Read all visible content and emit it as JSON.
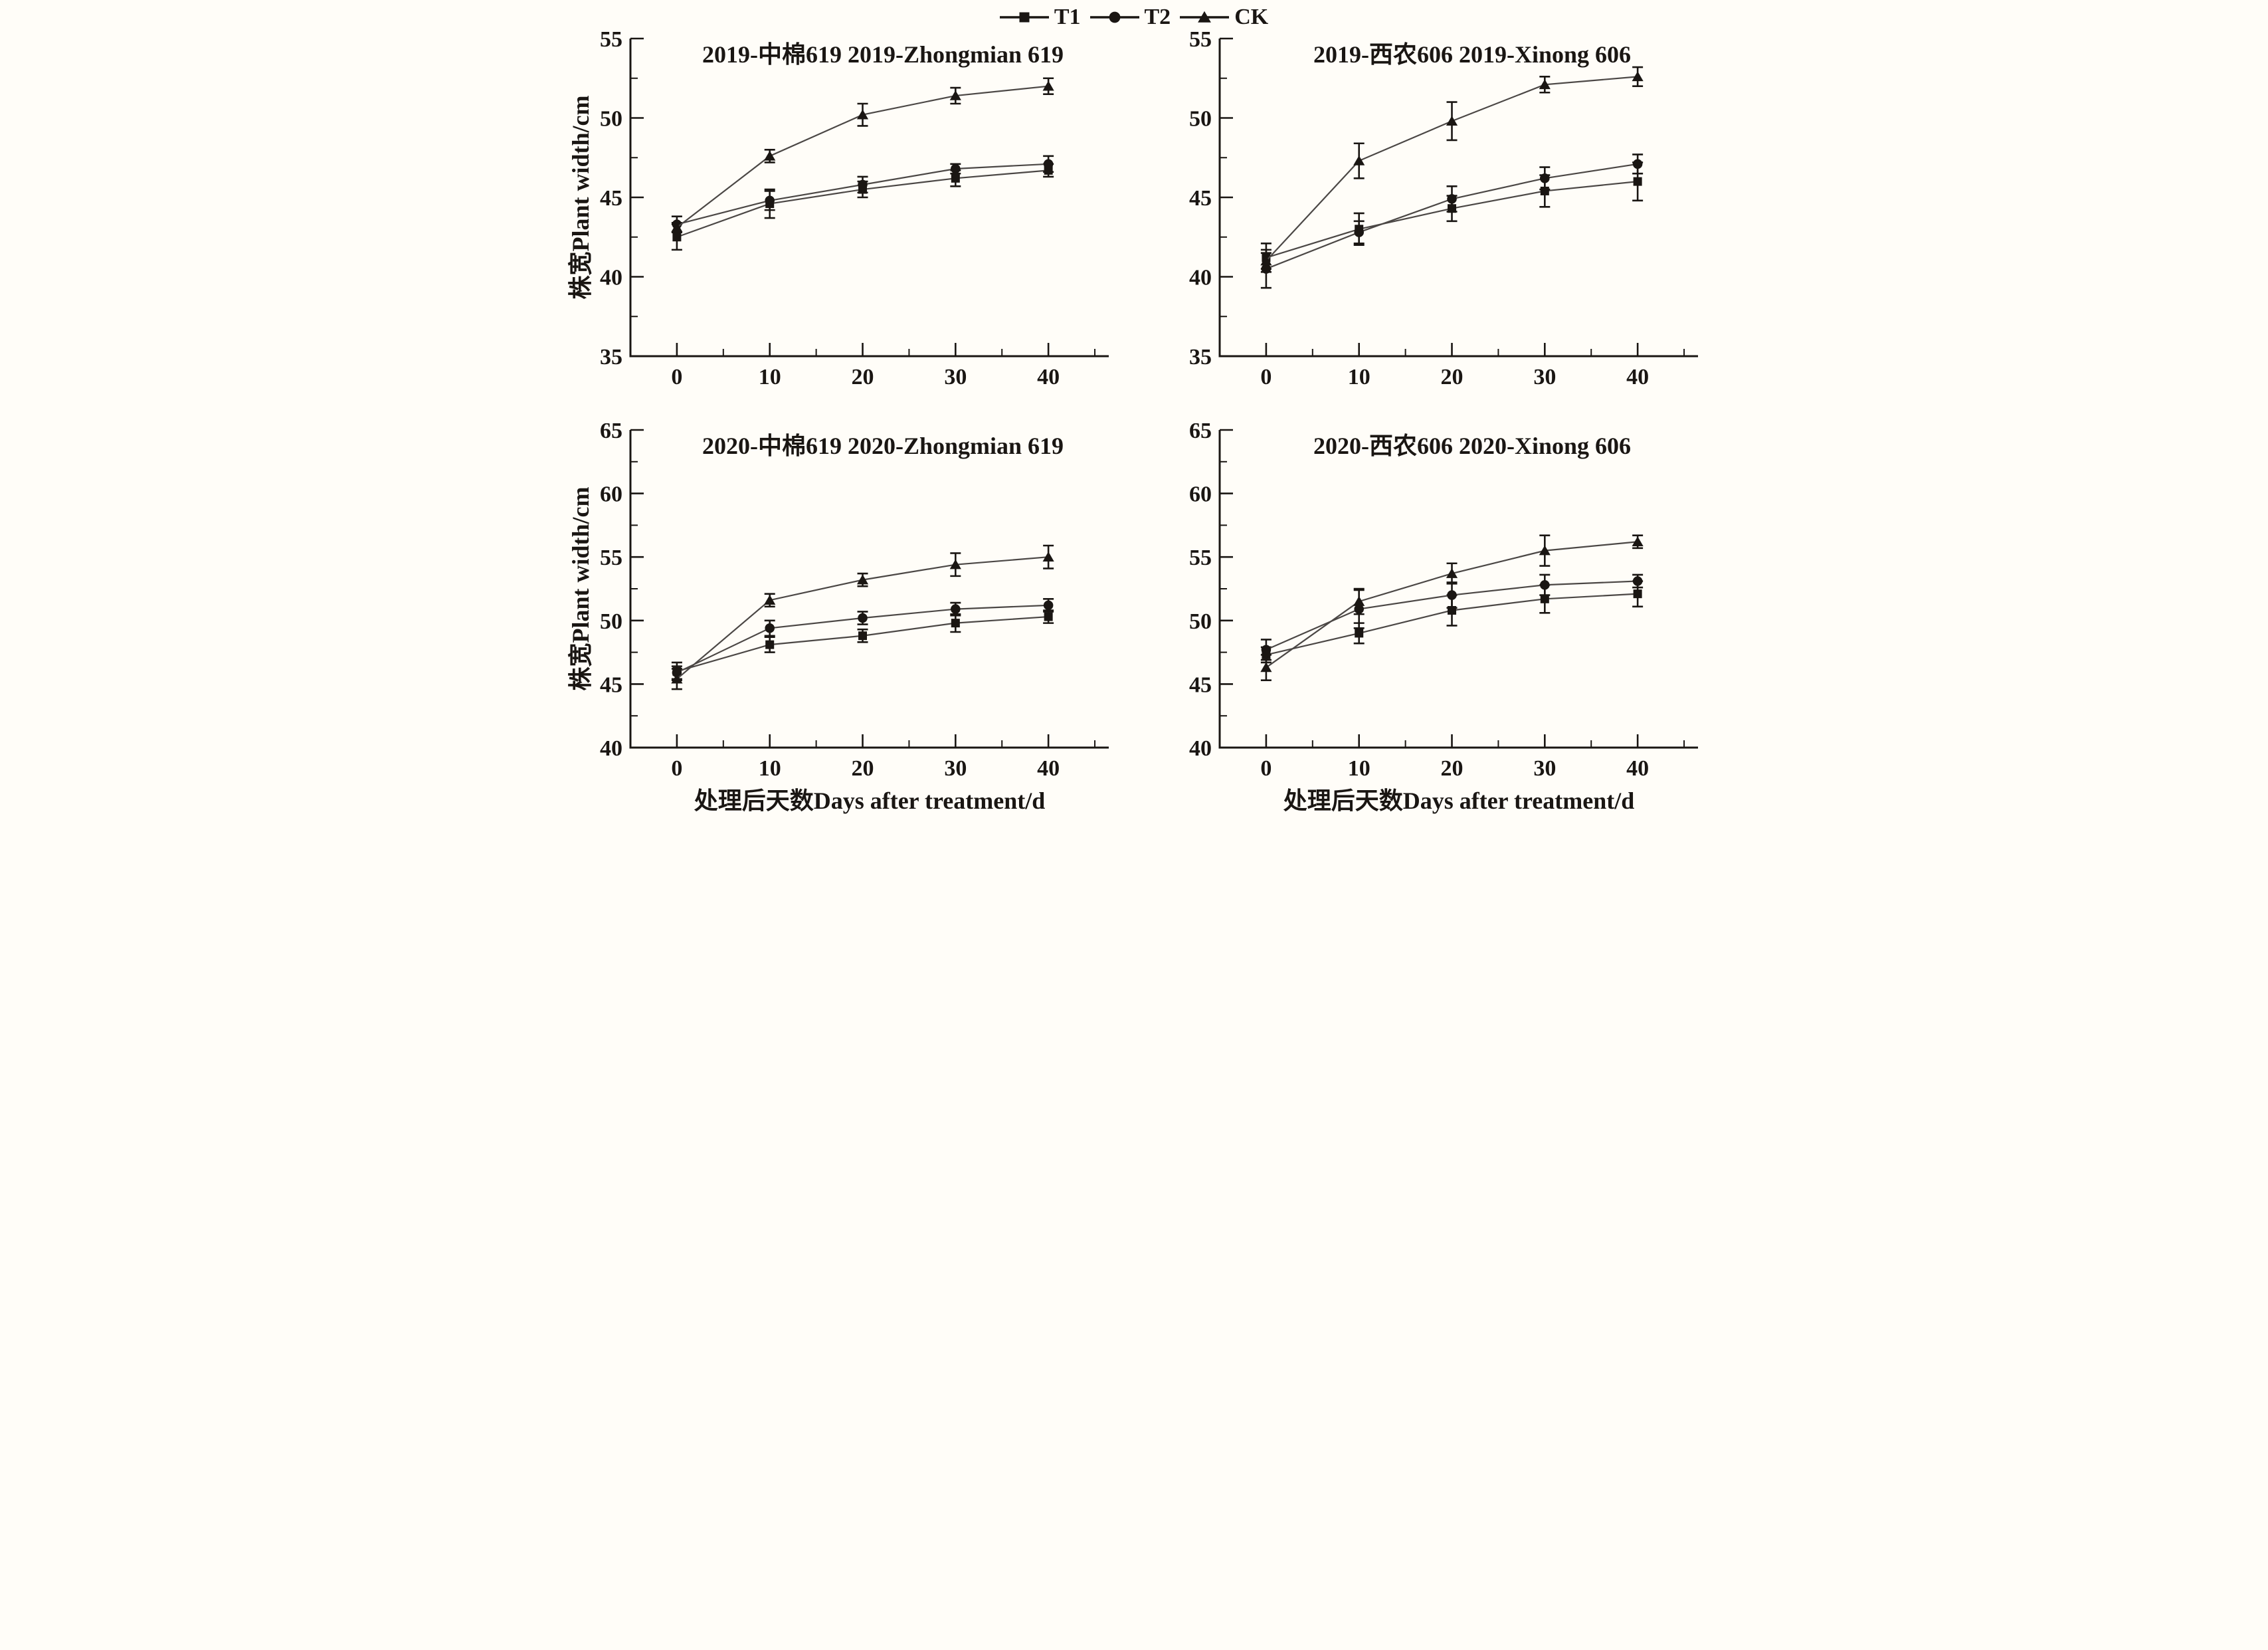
{
  "legend": {
    "items": [
      {
        "label": "T1",
        "marker": "square"
      },
      {
        "label": "T2",
        "marker": "circle"
      },
      {
        "label": "CK",
        "marker": "triangle"
      }
    ]
  },
  "axes": {
    "x_label": "处理后天数Days after treatment/d",
    "y_label": "株宽Plant width/cm",
    "x_ticks": [
      0,
      10,
      20,
      30,
      40
    ],
    "x_minor_ticks": [
      5,
      15,
      25,
      35,
      45
    ]
  },
  "colors": {
    "ink": "#1a1613",
    "line": "#4b4745",
    "background": "#fffdf8"
  },
  "chart_data": [
    {
      "type": "line",
      "title": "2019-中棉619 2019-Zhongmian 619",
      "x": [
        0,
        10,
        20,
        30,
        40
      ],
      "ylim": [
        35,
        55
      ],
      "yticks": [
        35,
        40,
        45,
        50,
        55
      ],
      "y_minor_step": 2.5,
      "show_ylabel": true,
      "show_xlabel": false,
      "series": [
        {
          "name": "T1",
          "marker": "square",
          "values": [
            42.5,
            44.6,
            45.5,
            46.2,
            46.7
          ],
          "errors": [
            0.8,
            0.9,
            0.5,
            0.5,
            0.4
          ]
        },
        {
          "name": "T2",
          "marker": "circle",
          "values": [
            43.3,
            44.8,
            45.8,
            46.8,
            47.1
          ],
          "errors": [
            0.5,
            0.6,
            0.5,
            0.3,
            0.5
          ]
        },
        {
          "name": "CK",
          "marker": "triangle",
          "values": [
            43.1,
            47.6,
            50.2,
            51.4,
            52.0
          ],
          "errors": [
            0.3,
            0.4,
            0.7,
            0.5,
            0.5
          ]
        }
      ]
    },
    {
      "type": "line",
      "title": "2019-西农606 2019-Xinong 606",
      "x": [
        0,
        10,
        20,
        30,
        40
      ],
      "ylim": [
        35,
        55
      ],
      "yticks": [
        35,
        40,
        45,
        50,
        55
      ],
      "y_minor_step": 2.5,
      "show_ylabel": false,
      "show_xlabel": false,
      "series": [
        {
          "name": "T1",
          "marker": "square",
          "values": [
            41.2,
            43.0,
            44.3,
            45.4,
            46.0
          ],
          "errors": [
            0.9,
            1.0,
            0.8,
            1.0,
            1.2
          ]
        },
        {
          "name": "T2",
          "marker": "circle",
          "values": [
            40.5,
            42.8,
            44.9,
            46.2,
            47.1
          ],
          "errors": [
            1.2,
            0.7,
            0.8,
            0.7,
            0.6
          ]
        },
        {
          "name": "CK",
          "marker": "triangle",
          "values": [
            41.0,
            47.3,
            49.8,
            52.1,
            52.6
          ],
          "errors": [
            0.5,
            1.1,
            1.2,
            0.5,
            0.6
          ]
        }
      ]
    },
    {
      "type": "line",
      "title": "2020-中棉619 2020-Zhongmian 619",
      "x": [
        0,
        10,
        20,
        30,
        40
      ],
      "ylim": [
        40,
        65
      ],
      "yticks": [
        40,
        45,
        50,
        55,
        60,
        65
      ],
      "y_minor_step": 2.5,
      "show_ylabel": true,
      "show_xlabel": true,
      "series": [
        {
          "name": "T1",
          "marker": "square",
          "values": [
            46.0,
            48.1,
            48.8,
            49.8,
            50.3
          ],
          "errors": [
            0.7,
            0.6,
            0.5,
            0.7,
            0.5
          ]
        },
        {
          "name": "T2",
          "marker": "circle",
          "values": [
            45.9,
            49.4,
            50.2,
            50.9,
            51.2
          ],
          "errors": [
            0.5,
            0.6,
            0.5,
            0.5,
            0.5
          ]
        },
        {
          "name": "CK",
          "marker": "triangle",
          "values": [
            45.4,
            51.6,
            53.2,
            54.4,
            55.0
          ],
          "errors": [
            0.8,
            0.5,
            0.5,
            0.9,
            0.9
          ]
        }
      ]
    },
    {
      "type": "line",
      "title": "2020-西农606 2020-Xinong 606",
      "x": [
        0,
        10,
        20,
        30,
        40
      ],
      "ylim": [
        40,
        65
      ],
      "yticks": [
        40,
        45,
        50,
        55,
        60,
        65
      ],
      "y_minor_step": 2.5,
      "show_ylabel": false,
      "show_xlabel": true,
      "series": [
        {
          "name": "T1",
          "marker": "square",
          "values": [
            47.3,
            49.0,
            50.8,
            51.7,
            52.1
          ],
          "errors": [
            0.6,
            0.8,
            1.2,
            1.1,
            1.0
          ]
        },
        {
          "name": "T2",
          "marker": "circle",
          "values": [
            47.7,
            50.9,
            52.0,
            52.8,
            53.1
          ],
          "errors": [
            0.8,
            1.5,
            1.0,
            0.8,
            0.5
          ]
        },
        {
          "name": "CK",
          "marker": "triangle",
          "values": [
            46.3,
            51.5,
            53.7,
            55.5,
            56.2
          ],
          "errors": [
            1.0,
            1.0,
            0.8,
            1.2,
            0.5
          ]
        }
      ]
    }
  ]
}
